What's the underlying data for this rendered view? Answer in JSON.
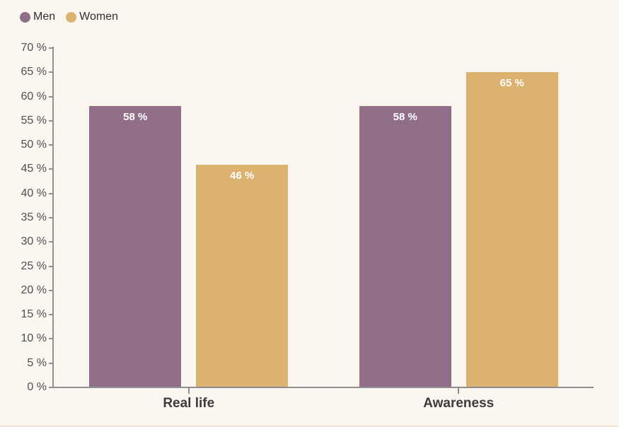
{
  "chart_data": {
    "type": "bar",
    "categories": [
      "Real life",
      "Awareness"
    ],
    "series": [
      {
        "name": "Men",
        "color": "#916e87",
        "values": [
          58,
          58
        ]
      },
      {
        "name": "Women",
        "color": "#dcb271",
        "values": [
          46,
          65
        ]
      }
    ],
    "title": "",
    "xlabel": "",
    "ylabel": "",
    "ylim": [
      0,
      70
    ],
    "ytick_step": 5,
    "ytick_suffix": " %",
    "value_suffix": " %",
    "grid": false,
    "legend_position": "top-left"
  },
  "colors": {
    "background": "#fcf6f0",
    "axis": "#8f8f8f",
    "tick_label": "#4f4f4f",
    "category_label": "#3c3c3c",
    "value_label": "#ffffff",
    "legend_text": "#303030"
  }
}
